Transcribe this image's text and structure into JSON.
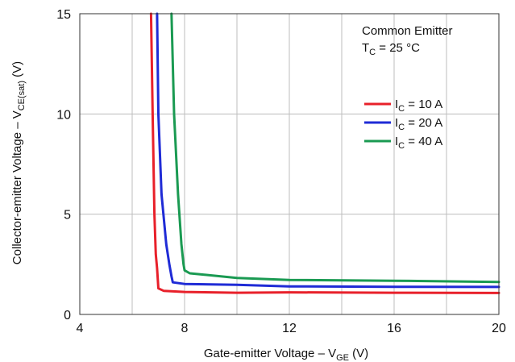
{
  "chart_data": {
    "type": "line",
    "xlabel": {
      "main": "Gate-emitter Voltage – V",
      "sub": "GE",
      "unit": " (V)"
    },
    "ylabel": {
      "main": "Collector-emitter Voltage – V",
      "sub": "CE(sat)",
      "unit": " (V)"
    },
    "xlim": [
      4,
      20
    ],
    "ylim": [
      0,
      15
    ],
    "x_ticks": [
      4,
      8,
      12,
      16,
      20
    ],
    "y_ticks": [
      0,
      5,
      10,
      15
    ],
    "x_gridlines": [
      6,
      8,
      10,
      12,
      14,
      16,
      18
    ],
    "y_gridlines": [
      5,
      10
    ],
    "grid": true,
    "annotations": {
      "line1": "Common Emitter",
      "line2": {
        "main": "T",
        "sub": "C",
        "rest": " = 25 °C"
      }
    },
    "legend_position": "right",
    "series": [
      {
        "name": {
          "main": "I",
          "sub": "C",
          "rest": " = 10 A"
        },
        "color": "#e8202a",
        "points": [
          [
            6.72,
            15
          ],
          [
            6.78,
            10
          ],
          [
            6.85,
            5
          ],
          [
            6.9,
            3
          ],
          [
            6.95,
            2.3
          ],
          [
            7.0,
            1.3
          ],
          [
            7.2,
            1.18
          ],
          [
            8,
            1.12
          ],
          [
            10,
            1.08
          ],
          [
            12,
            1.1
          ],
          [
            16,
            1.08
          ],
          [
            20,
            1.07
          ]
        ]
      },
      {
        "name": {
          "main": "I",
          "sub": "C",
          "rest": " = 20 A"
        },
        "color": "#1f2bd6",
        "points": [
          [
            6.95,
            15
          ],
          [
            7.0,
            10
          ],
          [
            7.12,
            6
          ],
          [
            7.3,
            3.5
          ],
          [
            7.42,
            2.5
          ],
          [
            7.5,
            1.9
          ],
          [
            7.55,
            1.6
          ],
          [
            8,
            1.52
          ],
          [
            10,
            1.48
          ],
          [
            12,
            1.4
          ],
          [
            16,
            1.38
          ],
          [
            20,
            1.37
          ]
        ]
      },
      {
        "name": {
          "main": "I",
          "sub": "C",
          "rest": " = 40 A"
        },
        "color": "#1a9a52",
        "points": [
          [
            7.5,
            15
          ],
          [
            7.6,
            10
          ],
          [
            7.75,
            6
          ],
          [
            7.88,
            3.5
          ],
          [
            7.96,
            2.5
          ],
          [
            8.0,
            2.2
          ],
          [
            8.2,
            2.05
          ],
          [
            10,
            1.82
          ],
          [
            12,
            1.72
          ],
          [
            16,
            1.68
          ],
          [
            20,
            1.62
          ]
        ]
      }
    ]
  }
}
